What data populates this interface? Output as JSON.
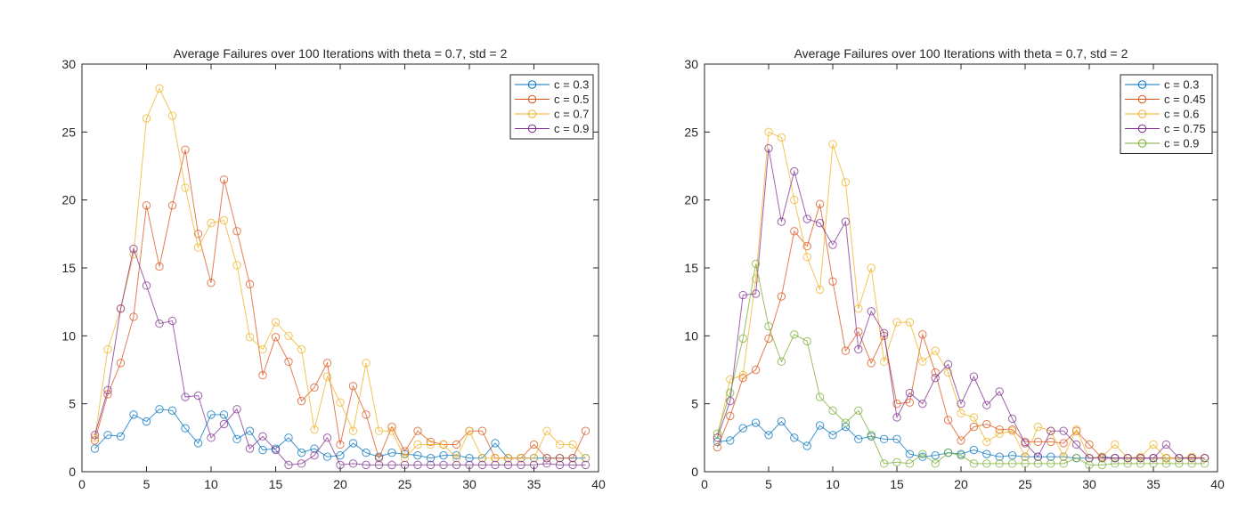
{
  "chart_data": [
    {
      "type": "line",
      "title": "Average Failures over 100 Iterations with theta = 0.7, std = 2",
      "xlabel": "",
      "ylabel": "",
      "xlim": [
        0,
        40
      ],
      "ylim": [
        0,
        30
      ],
      "xticks": [
        0,
        5,
        10,
        15,
        20,
        25,
        30,
        35,
        40
      ],
      "yticks": [
        0,
        5,
        10,
        15,
        20,
        25,
        30
      ],
      "grid": false,
      "legend_position": "top-right",
      "marker": "circle",
      "x": [
        1,
        2,
        3,
        4,
        5,
        6,
        7,
        8,
        9,
        10,
        11,
        12,
        13,
        14,
        15,
        16,
        17,
        18,
        19,
        20,
        21,
        22,
        23,
        24,
        25,
        26,
        27,
        28,
        29,
        30,
        31,
        32,
        33,
        34,
        35,
        36,
        37,
        38,
        39
      ],
      "series": [
        {
          "name": "c = 0.3",
          "color": "#0072BD",
          "values": [
            1.7,
            2.7,
            2.6,
            4.2,
            3.7,
            4.6,
            4.5,
            3.2,
            2.1,
            4.2,
            4.2,
            2.4,
            3.0,
            1.6,
            1.7,
            2.5,
            1.4,
            1.7,
            1.1,
            1.2,
            2.1,
            1.4,
            1.1,
            1.4,
            1.3,
            1.2,
            1.0,
            1.2,
            1.2,
            1.0,
            1.0,
            2.1,
            1.0,
            1.0,
            1.0,
            1.0,
            1.0,
            1.0,
            1.0
          ]
        },
        {
          "name": "c = 0.5",
          "color": "#D95319",
          "values": [
            2.3,
            5.7,
            8.0,
            11.4,
            19.6,
            15.1,
            19.6,
            23.7,
            17.5,
            13.9,
            21.5,
            17.7,
            13.8,
            7.1,
            9.9,
            8.1,
            5.2,
            6.2,
            8.0,
            2.0,
            6.3,
            4.2,
            1.0,
            3.3,
            1.5,
            3.0,
            2.2,
            2.0,
            2.0,
            3.0,
            3.0,
            1.0,
            1.0,
            1.0,
            2.0,
            1.0,
            1.0,
            1.0,
            3.0
          ]
        },
        {
          "name": "c = 0.7",
          "color": "#EDB120",
          "values": [
            2.5,
            9.0,
            12.0,
            16.0,
            26.0,
            28.2,
            26.2,
            20.9,
            16.5,
            18.3,
            18.5,
            15.2,
            9.9,
            9.0,
            11.0,
            10.0,
            9.0,
            3.1,
            7.0,
            5.1,
            3.0,
            8.0,
            3.0,
            3.0,
            1.0,
            2.0,
            2.0,
            2.0,
            1.0,
            3.0,
            1.0,
            1.0,
            1.0,
            1.0,
            1.0,
            3.0,
            2.0,
            2.0,
            1.0
          ]
        },
        {
          "name": "c = 0.9",
          "color": "#7E2F8E",
          "values": [
            2.7,
            6.0,
            12.0,
            16.4,
            13.7,
            10.9,
            11.1,
            5.5,
            5.6,
            2.5,
            3.5,
            4.6,
            1.7,
            2.6,
            1.6,
            0.5,
            0.6,
            1.2,
            2.5,
            0.5,
            0.6,
            0.5,
            0.5,
            0.5,
            0.5,
            0.5,
            0.5,
            0.5,
            0.5,
            0.5,
            0.5,
            0.5,
            0.5,
            0.5,
            0.5,
            0.6,
            0.5,
            0.5,
            0.5
          ]
        }
      ]
    },
    {
      "type": "line",
      "title": "Average Failures over 100 Iterations with theta = 0.7, std = 2",
      "xlabel": "",
      "ylabel": "",
      "xlim": [
        0,
        40
      ],
      "ylim": [
        0,
        30
      ],
      "xticks": [
        0,
        5,
        10,
        15,
        20,
        25,
        30,
        35,
        40
      ],
      "yticks": [
        0,
        5,
        10,
        15,
        20,
        25,
        30
      ],
      "grid": false,
      "legend_position": "top-right",
      "marker": "circle",
      "x": [
        1,
        2,
        3,
        4,
        5,
        6,
        7,
        8,
        9,
        10,
        11,
        12,
        13,
        14,
        15,
        16,
        17,
        18,
        19,
        20,
        21,
        22,
        23,
        24,
        25,
        26,
        27,
        28,
        29,
        30,
        31,
        32,
        33,
        34,
        35,
        36,
        37,
        38,
        39
      ],
      "series": [
        {
          "name": "c = 0.3",
          "color": "#0072BD",
          "values": [
            2.2,
            2.3,
            3.2,
            3.6,
            2.7,
            3.7,
            2.5,
            1.9,
            3.4,
            2.7,
            3.3,
            2.4,
            2.6,
            2.4,
            2.4,
            1.3,
            1.1,
            1.2,
            1.4,
            1.3,
            1.6,
            1.3,
            1.1,
            1.2,
            1.1,
            1.1,
            1.1,
            1.1,
            1.0,
            1.0,
            1.1,
            1.0,
            1.0,
            1.0,
            1.0,
            1.0,
            1.0,
            1.0,
            1.0
          ]
        },
        {
          "name": "c = 0.45",
          "color": "#D95319",
          "values": [
            1.8,
            4.1,
            6.9,
            7.5,
            9.8,
            12.9,
            17.7,
            16.6,
            19.7,
            14.0,
            8.9,
            10.3,
            8.0,
            10.0,
            5.0,
            5.1,
            10.1,
            7.3,
            3.8,
            2.3,
            3.3,
            3.5,
            3.1,
            3.1,
            2.2,
            2.2,
            2.2,
            2.1,
            3.0,
            2.0,
            1.0,
            1.0,
            1.0,
            1.0,
            1.0,
            1.0,
            1.0,
            1.0,
            1.0
          ]
        },
        {
          "name": "c = 0.6",
          "color": "#EDB120",
          "values": [
            2.5,
            6.8,
            7.1,
            14.2,
            25.0,
            24.6,
            20.0,
            15.8,
            13.4,
            24.1,
            21.3,
            12.0,
            15.0,
            8.1,
            11.0,
            11.0,
            8.1,
            8.9,
            7.3,
            4.3,
            4.0,
            2.2,
            2.8,
            3.0,
            1.1,
            3.3,
            3.0,
            1.1,
            3.1,
            1.0,
            1.1,
            2.0,
            1.0,
            1.1,
            2.0,
            1.0,
            1.0,
            1.1,
            1.0
          ]
        },
        {
          "name": "c = 0.75",
          "color": "#7E2F8E",
          "values": [
            2.5,
            5.2,
            13.0,
            13.1,
            23.8,
            18.4,
            22.1,
            18.6,
            18.3,
            16.7,
            18.4,
            9.0,
            11.8,
            10.2,
            4.0,
            5.8,
            5.0,
            6.9,
            7.9,
            5.0,
            7.0,
            4.9,
            5.9,
            3.9,
            2.1,
            1.1,
            3.0,
            3.0,
            2.0,
            1.0,
            1.0,
            1.0,
            1.0,
            1.0,
            1.0,
            2.0,
            1.0,
            1.0,
            1.0
          ]
        },
        {
          "name": "c = 0.9",
          "color": "#77AC30",
          "values": [
            2.8,
            5.8,
            9.8,
            15.3,
            10.7,
            8.1,
            10.1,
            9.6,
            5.5,
            4.5,
            3.6,
            4.5,
            2.7,
            0.6,
            0.7,
            0.6,
            1.3,
            0.6,
            1.4,
            1.2,
            0.6,
            0.6,
            0.6,
            0.6,
            0.6,
            0.6,
            0.6,
            0.6,
            1.0,
            0.5,
            0.5,
            0.6,
            0.6,
            0.6,
            0.6,
            0.6,
            0.6,
            0.6,
            0.6
          ]
        }
      ]
    }
  ]
}
